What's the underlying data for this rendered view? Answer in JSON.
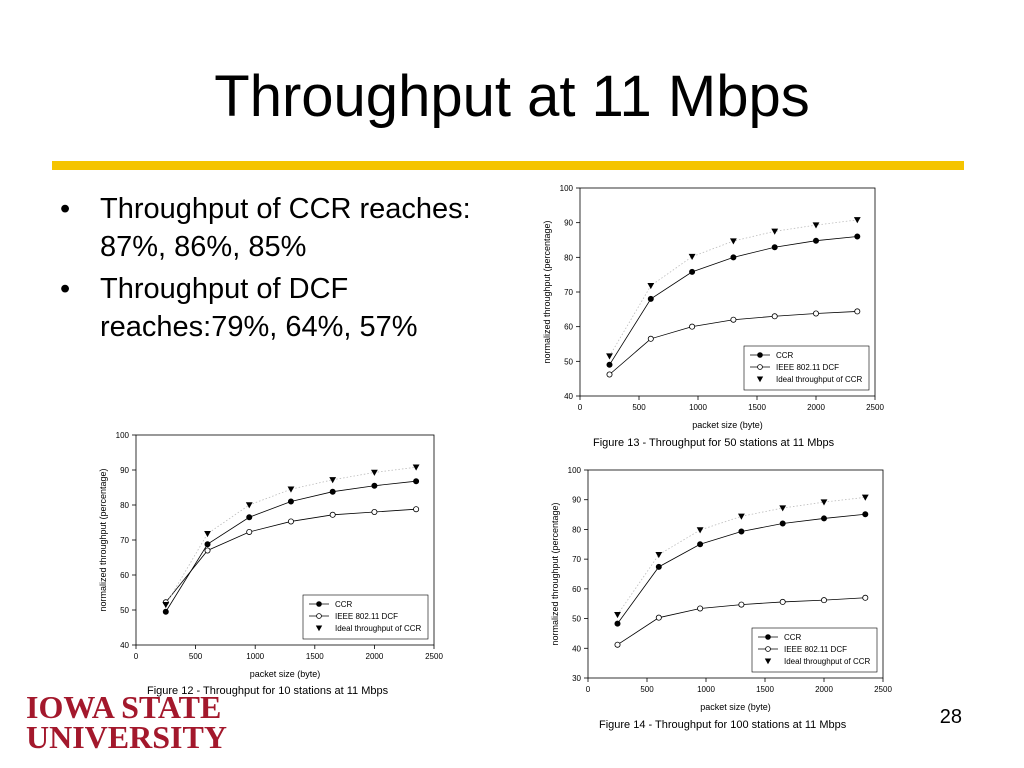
{
  "slide": {
    "title": "Throughput at 11 Mbps",
    "bullets": [
      "Throughput of CCR reaches: 87%, 86%, 85%",
      "Throughput of DCF reaches:79%, 64%, 57%"
    ],
    "logo_line1": "IOWA STATE",
    "logo_line2": "UNIVERSITY",
    "page_number": "28",
    "accent_color": "#f5c400",
    "logo_color": "#a3182c"
  },
  "chart_data": [
    {
      "id": "fig13",
      "type": "line",
      "caption": "Figure 13 - Throughput for 50 stations at 11 Mbps",
      "xlabel": "packet size (byte)",
      "ylabel": "normalized throughput (percentage)",
      "xlim": [
        0,
        2500
      ],
      "ylim": [
        40,
        100
      ],
      "xticks": [
        0,
        500,
        1000,
        1500,
        2000,
        2500
      ],
      "yticks": [
        40,
        50,
        60,
        70,
        80,
        90,
        100
      ],
      "legend_position": "bottom-right",
      "x": [
        250,
        600,
        950,
        1300,
        1650,
        2000,
        2350
      ],
      "series": [
        {
          "name": "CCR",
          "marker": "filled-circle",
          "values": [
            49,
            68,
            75.8,
            80,
            82.9,
            84.8,
            86
          ]
        },
        {
          "name": "IEEE 802.11 DCF",
          "marker": "open-circle",
          "values": [
            46.2,
            56.5,
            60,
            62,
            63,
            63.8,
            64.4
          ]
        },
        {
          "name": "Ideal throughput of CCR",
          "marker": "triangle-down",
          "values": [
            51.5,
            71.8,
            80.2,
            84.7,
            87.5,
            89.3,
            90.8
          ]
        }
      ]
    },
    {
      "id": "fig12",
      "type": "line",
      "caption": "Figure 12 - Throughput for 10 stations at 11 Mbps",
      "xlabel": "packet size (byte)",
      "ylabel": "normalized throughput (percentage)",
      "xlim": [
        0,
        2500
      ],
      "ylim": [
        40,
        100
      ],
      "xticks": [
        0,
        500,
        1000,
        1500,
        2000,
        2500
      ],
      "yticks": [
        40,
        50,
        60,
        70,
        80,
        90,
        100
      ],
      "legend_position": "bottom-right",
      "x": [
        250,
        600,
        950,
        1300,
        1650,
        2000,
        2350
      ],
      "series": [
        {
          "name": "CCR",
          "marker": "filled-circle",
          "values": [
            49.5,
            68.8,
            76.5,
            81,
            83.8,
            85.5,
            86.8
          ]
        },
        {
          "name": "IEEE 802.11 DCF",
          "marker": "open-circle",
          "values": [
            52.2,
            67,
            72.3,
            75.3,
            77.2,
            78,
            78.8
          ]
        },
        {
          "name": "Ideal throughput of CCR",
          "marker": "triangle-down",
          "values": [
            51.5,
            71.8,
            80,
            84.5,
            87.2,
            89.3,
            90.8
          ]
        }
      ]
    },
    {
      "id": "fig14",
      "type": "line",
      "caption": "Figure 14 - Throughput for 100 stations at 11 Mbps",
      "xlabel": "packet size (byte)",
      "ylabel": "normalized throughput (percentage)",
      "xlim": [
        0,
        2500
      ],
      "ylim": [
        30,
        100
      ],
      "xticks": [
        0,
        500,
        1000,
        1500,
        2000,
        2500
      ],
      "yticks": [
        30,
        40,
        50,
        60,
        70,
        80,
        90,
        100
      ],
      "legend_position": "bottom-right",
      "x": [
        250,
        600,
        950,
        1300,
        1650,
        2000,
        2350
      ],
      "series": [
        {
          "name": "CCR",
          "marker": "filled-circle",
          "values": [
            48.3,
            67.4,
            75,
            79.3,
            82,
            83.7,
            85.1
          ]
        },
        {
          "name": "IEEE 802.11 DCF",
          "marker": "open-circle",
          "values": [
            41.2,
            50.3,
            53.4,
            54.7,
            55.6,
            56.2,
            57
          ]
        },
        {
          "name": "Ideal throughput of CCR",
          "marker": "triangle-down",
          "values": [
            51.3,
            71.5,
            79.8,
            84.4,
            87.2,
            89.2,
            90.8
          ]
        }
      ]
    }
  ]
}
